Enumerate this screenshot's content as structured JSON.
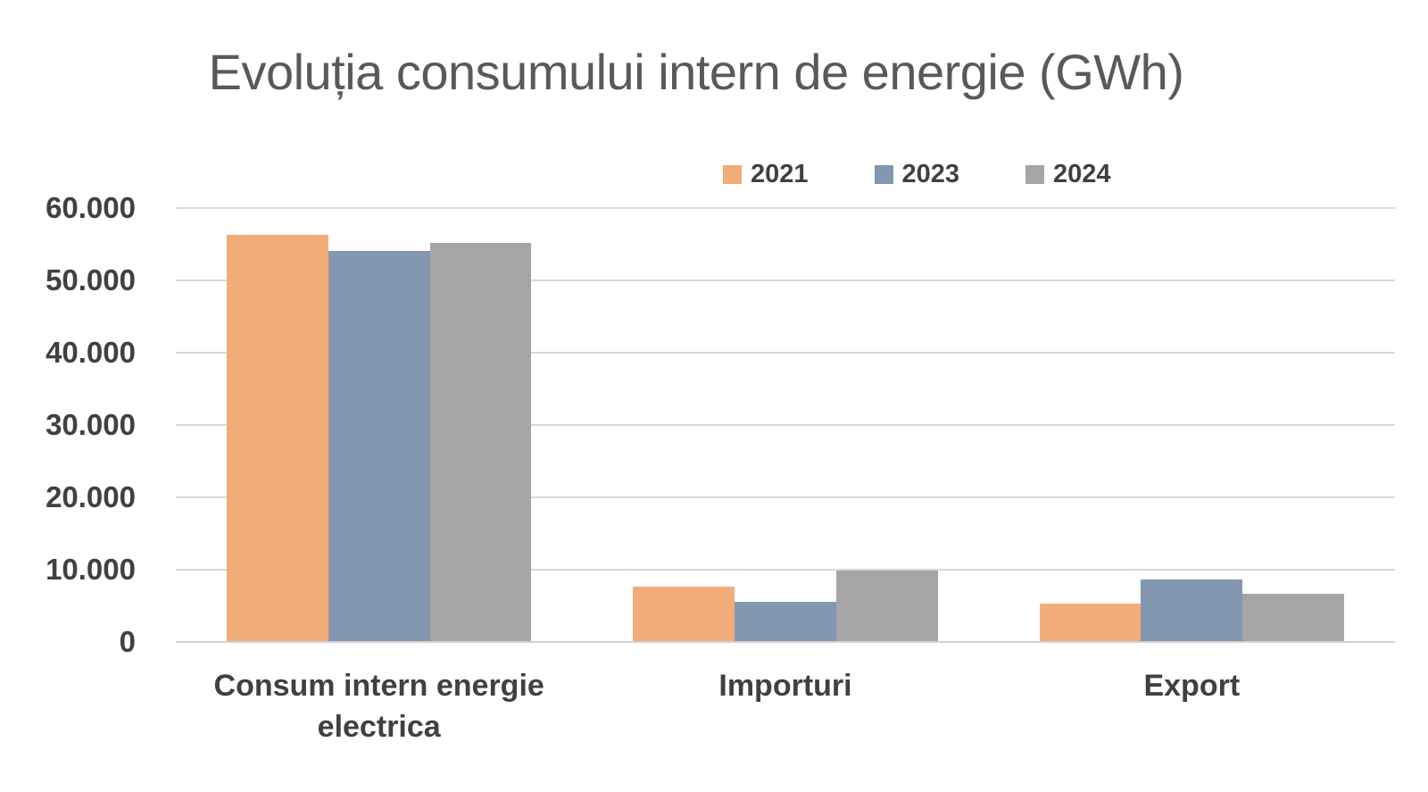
{
  "chart_data": {
    "type": "bar",
    "title": "Evoluția consumului intern de energie (GWh)",
    "categories": [
      "Consum intern energie electrica",
      "Importuri",
      "Export"
    ],
    "series": [
      {
        "name": "2021",
        "color": "#F2AC79",
        "values": [
          56200,
          7500,
          5200
        ]
      },
      {
        "name": "2023",
        "color": "#8497B0",
        "values": [
          53900,
          5400,
          8500
        ]
      },
      {
        "name": "2024",
        "color": "#A5A5A5",
        "values": [
          55100,
          9700,
          6500
        ]
      }
    ],
    "xlabel": "",
    "ylabel": "",
    "ylim": [
      0,
      60000
    ],
    "ytick_interval": 10000,
    "ytick_labels": [
      "0",
      "10.000",
      "20.000",
      "30.000",
      "40.000",
      "50.000",
      "60.000"
    ],
    "grid": true,
    "legend_position": "top-right"
  },
  "colors": {
    "background": "#FFFFFF",
    "title_text": "#595959",
    "axis_text": "#404040",
    "gridline": "#D9D9D9",
    "zero_line": "#D2D2D2"
  }
}
